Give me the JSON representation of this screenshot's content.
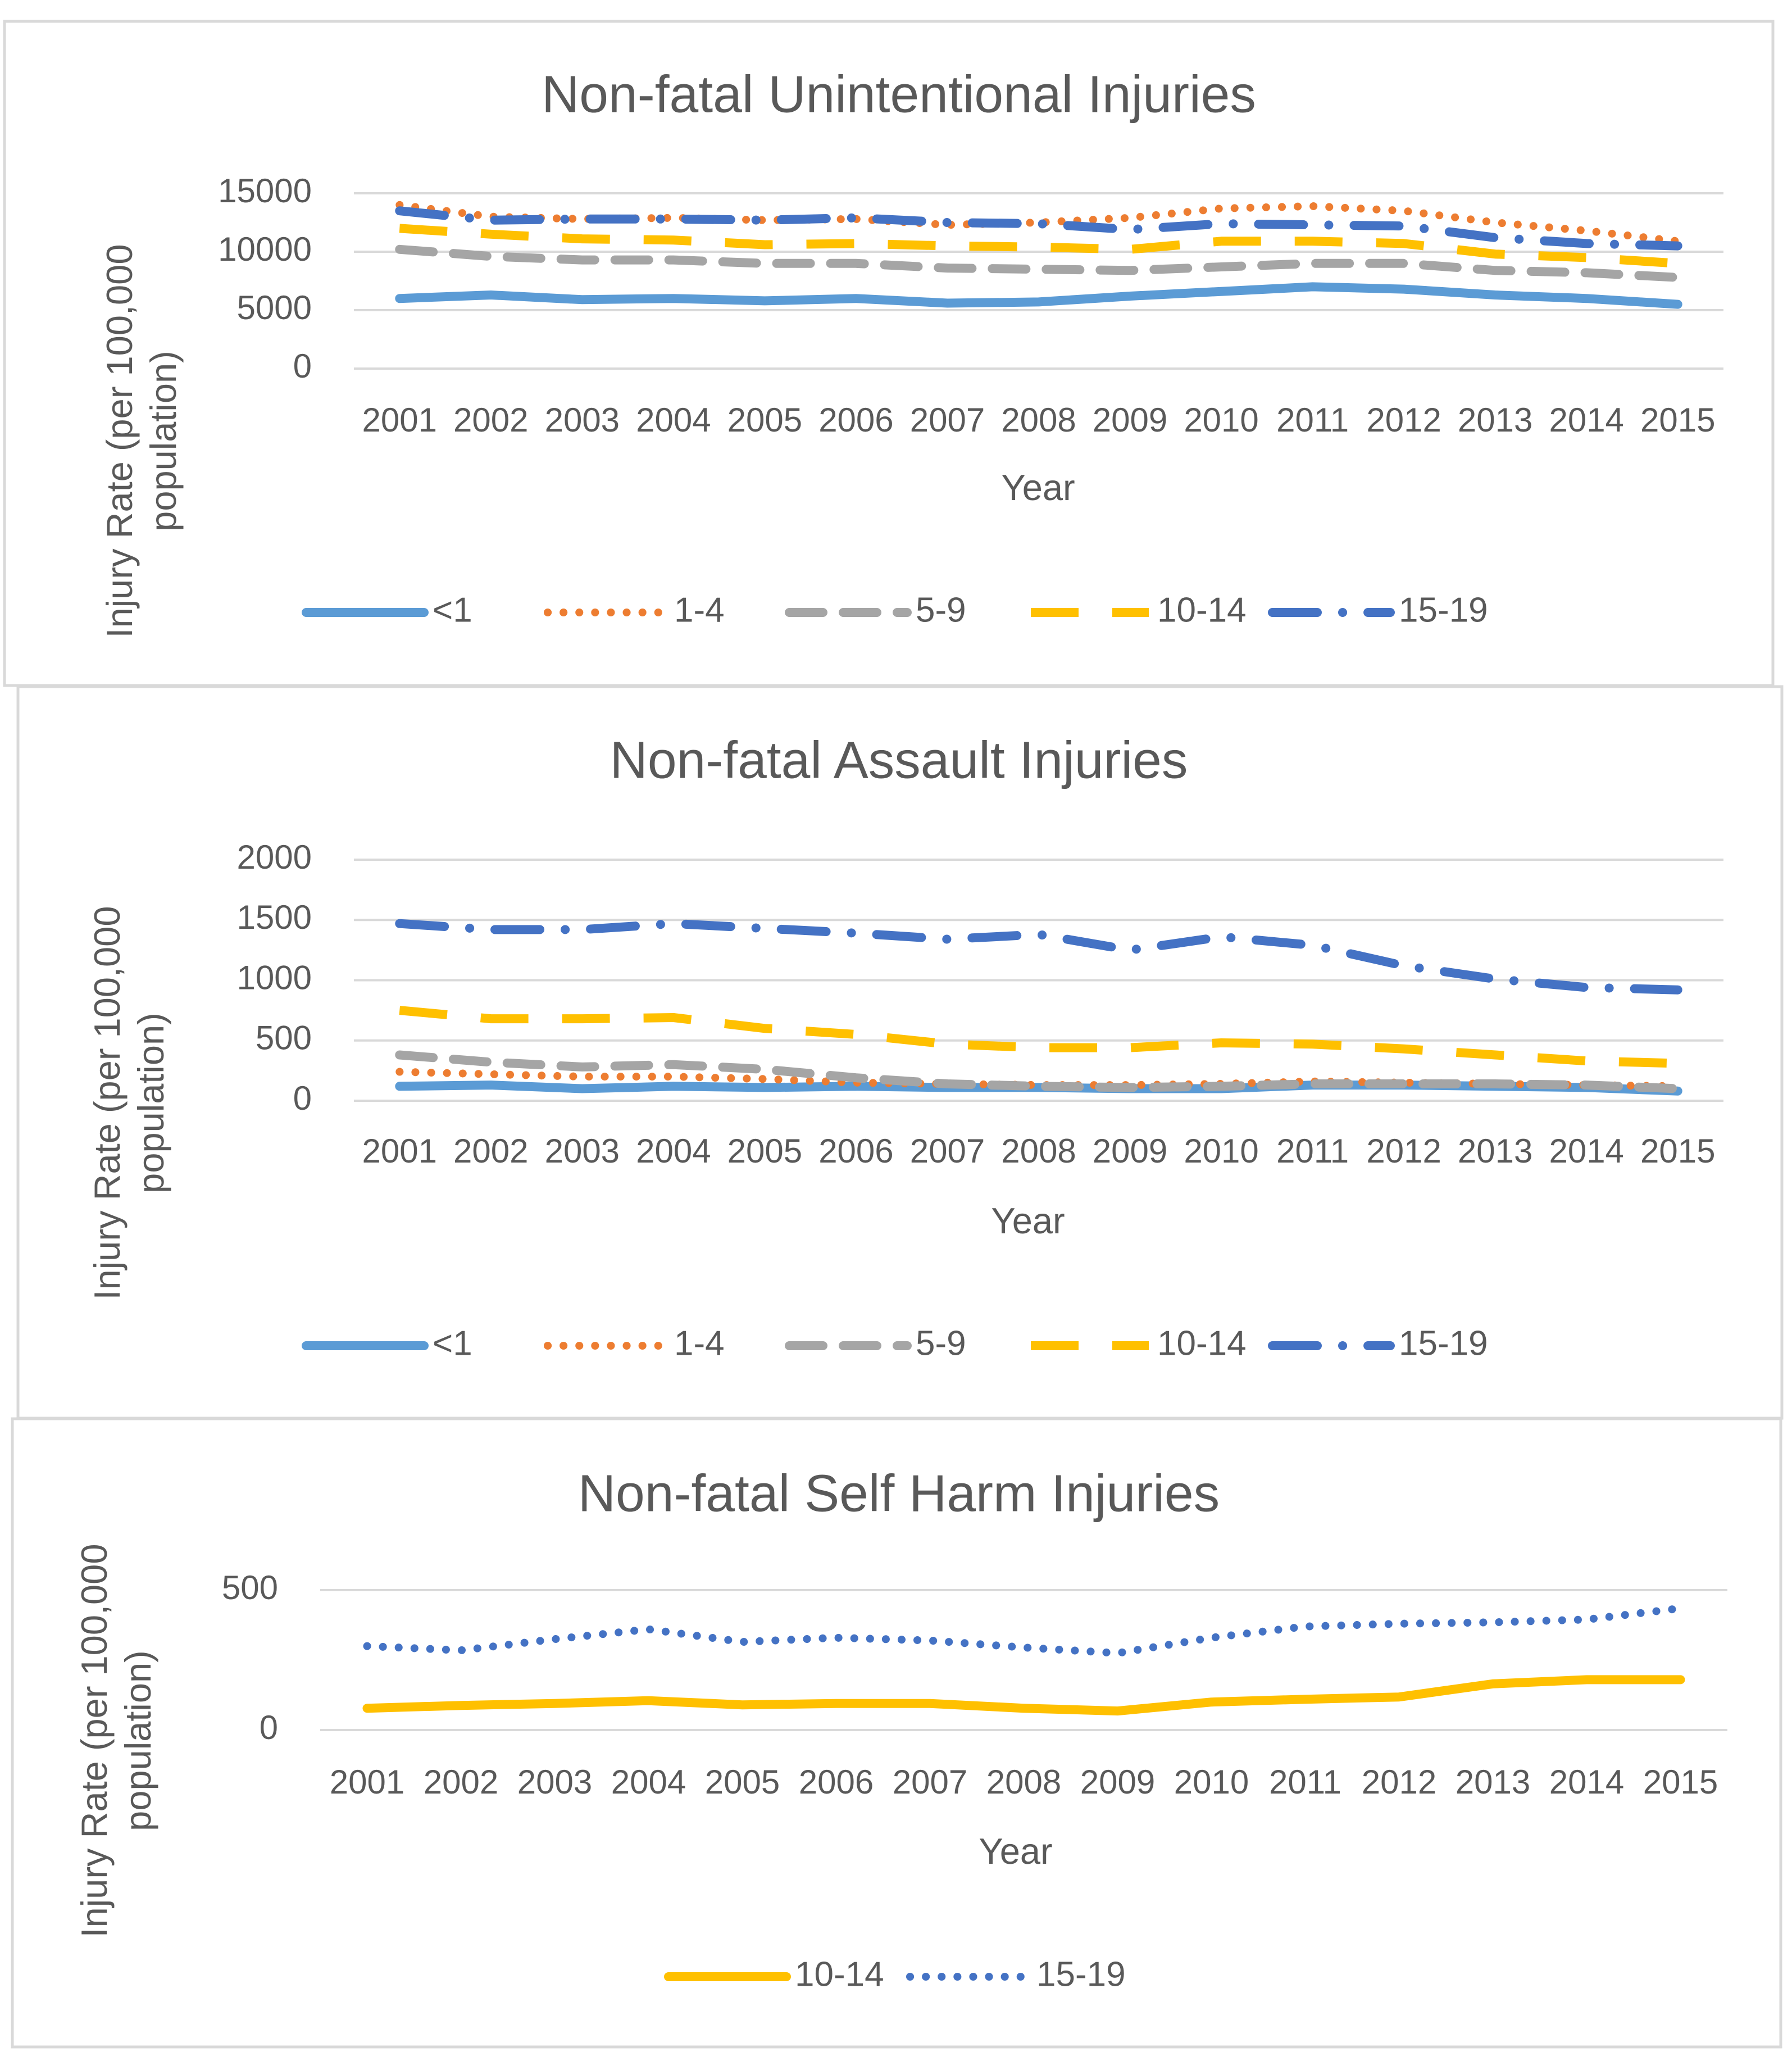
{
  "chart_data": [
    {
      "type": "line",
      "title": "Non-fatal Unintentional Injuries",
      "xlabel": "Year",
      "ylabel": "Injury Rate (per 100,000 population)",
      "ylim": [
        0,
        15000
      ],
      "yticks": [
        0,
        5000,
        10000,
        15000
      ],
      "grid": true,
      "legend": "bottom",
      "categories": [
        "2001",
        "2002",
        "2003",
        "2004",
        "2005",
        "2006",
        "2007",
        "2008",
        "2009",
        "2010",
        "2011",
        "2012",
        "2013",
        "2014",
        "2015"
      ],
      "series": [
        {
          "name": "<1",
          "style": "solid",
          "color": "#5B9BD5",
          "values": [
            6000,
            6300,
            5900,
            6000,
            5800,
            6000,
            5600,
            5700,
            6200,
            6600,
            7000,
            6800,
            6300,
            6000,
            5500
          ]
        },
        {
          "name": "1-4",
          "style": "dotted",
          "color": "#ED7D31",
          "values": [
            14000,
            13000,
            12800,
            12900,
            12700,
            12800,
            12300,
            12500,
            12900,
            13700,
            13900,
            13500,
            12500,
            11800,
            10900
          ]
        },
        {
          "name": "5-9",
          "style": "dashed",
          "color": "#A5A5A5",
          "values": [
            10200,
            9600,
            9300,
            9300,
            9000,
            9000,
            8600,
            8500,
            8400,
            8700,
            9000,
            9000,
            8400,
            8200,
            7800
          ]
        },
        {
          "name": "10-14",
          "style": "longdash",
          "color": "#FFC000",
          "values": [
            12000,
            11500,
            11100,
            11000,
            10600,
            10700,
            10500,
            10400,
            10200,
            10900,
            10900,
            10700,
            9800,
            9500,
            9000
          ]
        },
        {
          "name": "15-19",
          "style": "dashdot",
          "color": "#4472C4",
          "values": [
            13500,
            12700,
            12800,
            12800,
            12700,
            12900,
            12500,
            12400,
            11900,
            12400,
            12300,
            12200,
            11200,
            10700,
            10500
          ]
        }
      ]
    },
    {
      "type": "line",
      "title": "Non-fatal Assault Injuries",
      "xlabel": "Year",
      "ylabel": "Injury Rate (per 100,000 population)",
      "ylim": [
        0,
        2000
      ],
      "yticks": [
        0,
        500,
        1000,
        1500,
        2000
      ],
      "grid": true,
      "legend": "bottom",
      "categories": [
        "2001",
        "2002",
        "2003",
        "2004",
        "2005",
        "2006",
        "2007",
        "2008",
        "2009",
        "2010",
        "2011",
        "2012",
        "2013",
        "2014",
        "2015"
      ],
      "series": [
        {
          "name": "<1",
          "style": "solid",
          "color": "#5B9BD5",
          "values": [
            120,
            130,
            100,
            120,
            110,
            120,
            110,
            110,
            100,
            100,
            130,
            130,
            120,
            110,
            80
          ]
        },
        {
          "name": "1-4",
          "style": "dotted",
          "color": "#ED7D31",
          "values": [
            240,
            220,
            200,
            200,
            180,
            150,
            140,
            130,
            130,
            140,
            160,
            150,
            140,
            130,
            120
          ]
        },
        {
          "name": "5-9",
          "style": "dashed",
          "color": "#A5A5A5",
          "values": [
            380,
            320,
            280,
            300,
            260,
            190,
            140,
            120,
            110,
            120,
            140,
            140,
            140,
            130,
            100
          ]
        },
        {
          "name": "10-14",
          "style": "longdash",
          "color": "#FFC000",
          "values": [
            750,
            680,
            680,
            690,
            600,
            550,
            470,
            440,
            440,
            480,
            470,
            430,
            380,
            330,
            310
          ]
        },
        {
          "name": "15-19",
          "style": "dashdot",
          "color": "#4472C4",
          "values": [
            1470,
            1420,
            1420,
            1470,
            1430,
            1390,
            1340,
            1380,
            1250,
            1360,
            1290,
            1120,
            1010,
            940,
            920
          ]
        }
      ]
    },
    {
      "type": "line",
      "title": "Non-fatal Self Harm Injuries",
      "xlabel": "Year",
      "ylabel": "Injury Rate (per 100,000 population)",
      "ylim": [
        0,
        500
      ],
      "yticks": [
        0,
        500
      ],
      "grid": true,
      "legend": "bottom",
      "categories": [
        "2001",
        "2002",
        "2003",
        "2004",
        "2005",
        "2006",
        "2007",
        "2008",
        "2009",
        "2010",
        "2011",
        "2012",
        "2013",
        "2014",
        "2015"
      ],
      "series": [
        {
          "name": "10-14",
          "style": "solid",
          "color": "#FFC000",
          "values": [
            78,
            88,
            95,
            105,
            90,
            95,
            95,
            78,
            68,
            100,
            110,
            118,
            165,
            180,
            180
          ]
        },
        {
          "name": "15-19",
          "style": "dotted",
          "color": "#4472C4",
          "values": [
            300,
            285,
            325,
            360,
            315,
            330,
            320,
            295,
            275,
            330,
            370,
            380,
            385,
            395,
            435
          ]
        }
      ]
    }
  ]
}
